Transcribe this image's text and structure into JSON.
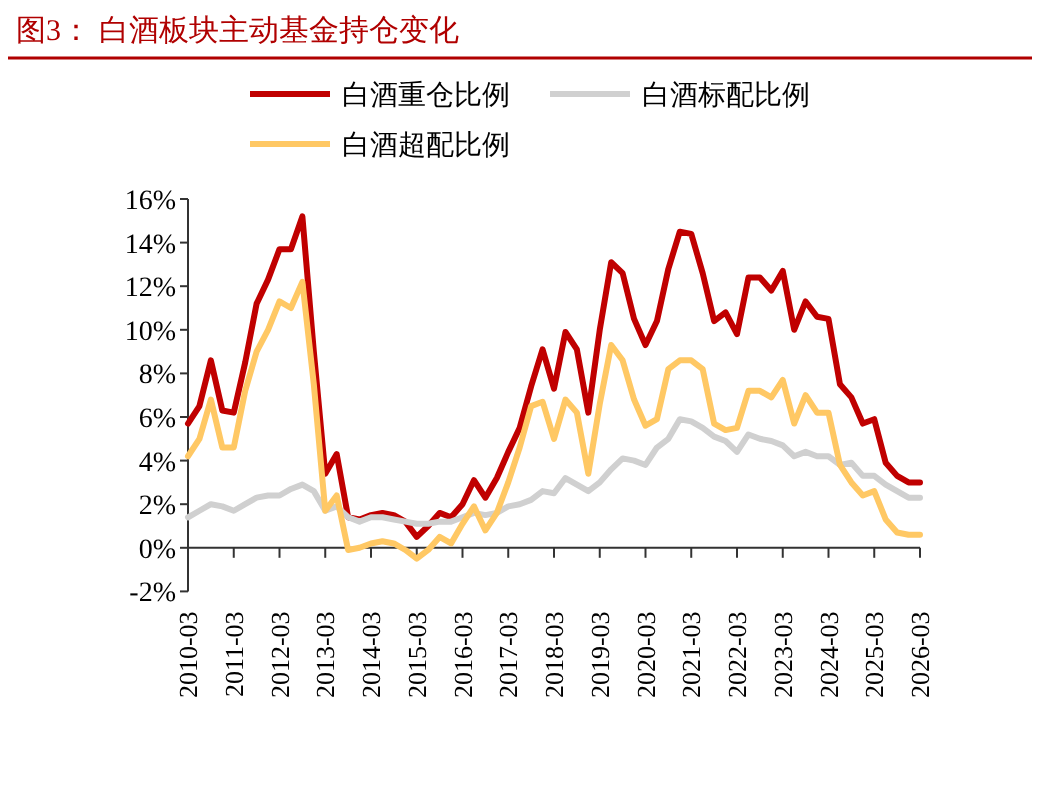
{
  "chart_data": {
    "type": "line",
    "title": "图3：  白酒板块主动基金持仓变化",
    "x": [
      "2010-03",
      "2010-06",
      "2010-09",
      "2010-12",
      "2011-03",
      "2011-06",
      "2011-09",
      "2011-12",
      "2012-03",
      "2012-06",
      "2012-09",
      "2012-12",
      "2013-03",
      "2013-06",
      "2013-09",
      "2013-12",
      "2014-03",
      "2014-06",
      "2014-09",
      "2014-12",
      "2015-03",
      "2015-06",
      "2015-09",
      "2015-12",
      "2016-03",
      "2016-06",
      "2016-09",
      "2016-12",
      "2017-03",
      "2017-06",
      "2017-09",
      "2017-12",
      "2018-03",
      "2018-06",
      "2018-09",
      "2018-12",
      "2019-03",
      "2019-06",
      "2019-09",
      "2019-12",
      "2020-03",
      "2020-06",
      "2020-09",
      "2020-12",
      "2021-03",
      "2021-06",
      "2021-09",
      "2021-12",
      "2022-03",
      "2022-06",
      "2022-09",
      "2022-12",
      "2023-03",
      "2023-06",
      "2023-09",
      "2023-12",
      "2024-03",
      "2024-06",
      "2024-09",
      "2024-12",
      "2025-03",
      "2025-06",
      "2025-09",
      "2025-12",
      "2026-03"
    ],
    "series": [
      {
        "name": "白酒重仓比例",
        "color": "#c00000",
        "values": [
          5.7,
          6.5,
          8.6,
          6.3,
          6.2,
          8.5,
          11.2,
          12.3,
          13.7,
          13.7,
          15.2,
          9.0,
          3.4,
          4.3,
          1.4,
          1.3,
          1.5,
          1.6,
          1.5,
          1.2,
          0.5,
          1.0,
          1.6,
          1.4,
          2.0,
          3.1,
          2.3,
          3.2,
          4.4,
          5.5,
          7.4,
          9.1,
          7.3,
          9.9,
          9.1,
          6.2,
          10.0,
          13.1,
          12.6,
          10.5,
          9.3,
          10.4,
          12.8,
          14.5,
          14.4,
          12.6,
          10.4,
          10.8,
          9.8,
          12.4,
          12.4,
          11.8,
          12.7,
          10.0,
          11.3,
          10.6,
          10.5,
          7.5,
          6.9,
          5.7,
          5.9,
          3.9,
          3.3,
          3.0,
          3.0
        ]
      },
      {
        "name": "白酒标配比例",
        "color": "#d0d0d0",
        "values": [
          1.4,
          1.7,
          2.0,
          1.9,
          1.7,
          2.0,
          2.3,
          2.4,
          2.4,
          2.7,
          2.9,
          2.6,
          1.7,
          1.9,
          1.4,
          1.2,
          1.4,
          1.4,
          1.3,
          1.2,
          1.1,
          1.1,
          1.2,
          1.2,
          1.4,
          1.6,
          1.5,
          1.6,
          1.9,
          2.0,
          2.2,
          2.6,
          2.5,
          3.2,
          2.9,
          2.6,
          3.0,
          3.6,
          4.1,
          4.0,
          3.8,
          4.6,
          5.0,
          5.9,
          5.8,
          5.5,
          5.1,
          4.9,
          4.4,
          5.2,
          5.0,
          4.9,
          4.7,
          4.2,
          4.4,
          4.2,
          4.2,
          3.8,
          3.9,
          3.3,
          3.3,
          2.9,
          2.6,
          2.3,
          2.3
        ]
      },
      {
        "name": "白酒超配比例",
        "color": "#ffc864",
        "values": [
          4.2,
          5.0,
          6.8,
          4.6,
          4.6,
          7.2,
          9.0,
          10.0,
          11.3,
          11.0,
          12.2,
          7.5,
          1.7,
          2.4,
          -0.1,
          0.0,
          0.2,
          0.3,
          0.2,
          -0.1,
          -0.5,
          -0.1,
          0.5,
          0.2,
          1.1,
          1.9,
          0.8,
          1.6,
          3.0,
          4.6,
          6.5,
          6.7,
          5.0,
          6.8,
          6.2,
          3.4,
          6.6,
          9.3,
          8.6,
          6.8,
          5.6,
          5.9,
          8.2,
          8.6,
          8.6,
          8.2,
          5.7,
          5.4,
          5.5,
          7.2,
          7.2,
          6.9,
          7.7,
          5.7,
          7.0,
          6.2,
          6.2,
          3.8,
          3.0,
          2.4,
          2.6,
          1.3,
          0.7,
          0.6,
          0.6
        ]
      }
    ],
    "xlim": [
      "2010-03",
      "2026-03"
    ],
    "xticks": [
      "2010-03",
      "2011-03",
      "2012-03",
      "2013-03",
      "2014-03",
      "2015-03",
      "2016-03",
      "2017-03",
      "2018-03",
      "2019-03",
      "2020-03",
      "2021-03",
      "2022-03",
      "2023-03",
      "2024-03",
      "2025-03",
      "2026-03"
    ],
    "ylim": [
      -2,
      16
    ],
    "yticks": [
      {
        "value": -2,
        "label": "-2%"
      },
      {
        "value": 0,
        "label": "0%"
      },
      {
        "value": 2,
        "label": "2%"
      },
      {
        "value": 4,
        "label": "4%"
      },
      {
        "value": 6,
        "label": "6%"
      },
      {
        "value": 8,
        "label": "8%"
      },
      {
        "value": 10,
        "label": "10%"
      },
      {
        "value": 12,
        "label": "12%"
      },
      {
        "value": 14,
        "label": "14%"
      },
      {
        "value": 16,
        "label": "16%"
      }
    ],
    "grid": false,
    "legend": "top",
    "marker": "none",
    "line_style": "solid"
  }
}
